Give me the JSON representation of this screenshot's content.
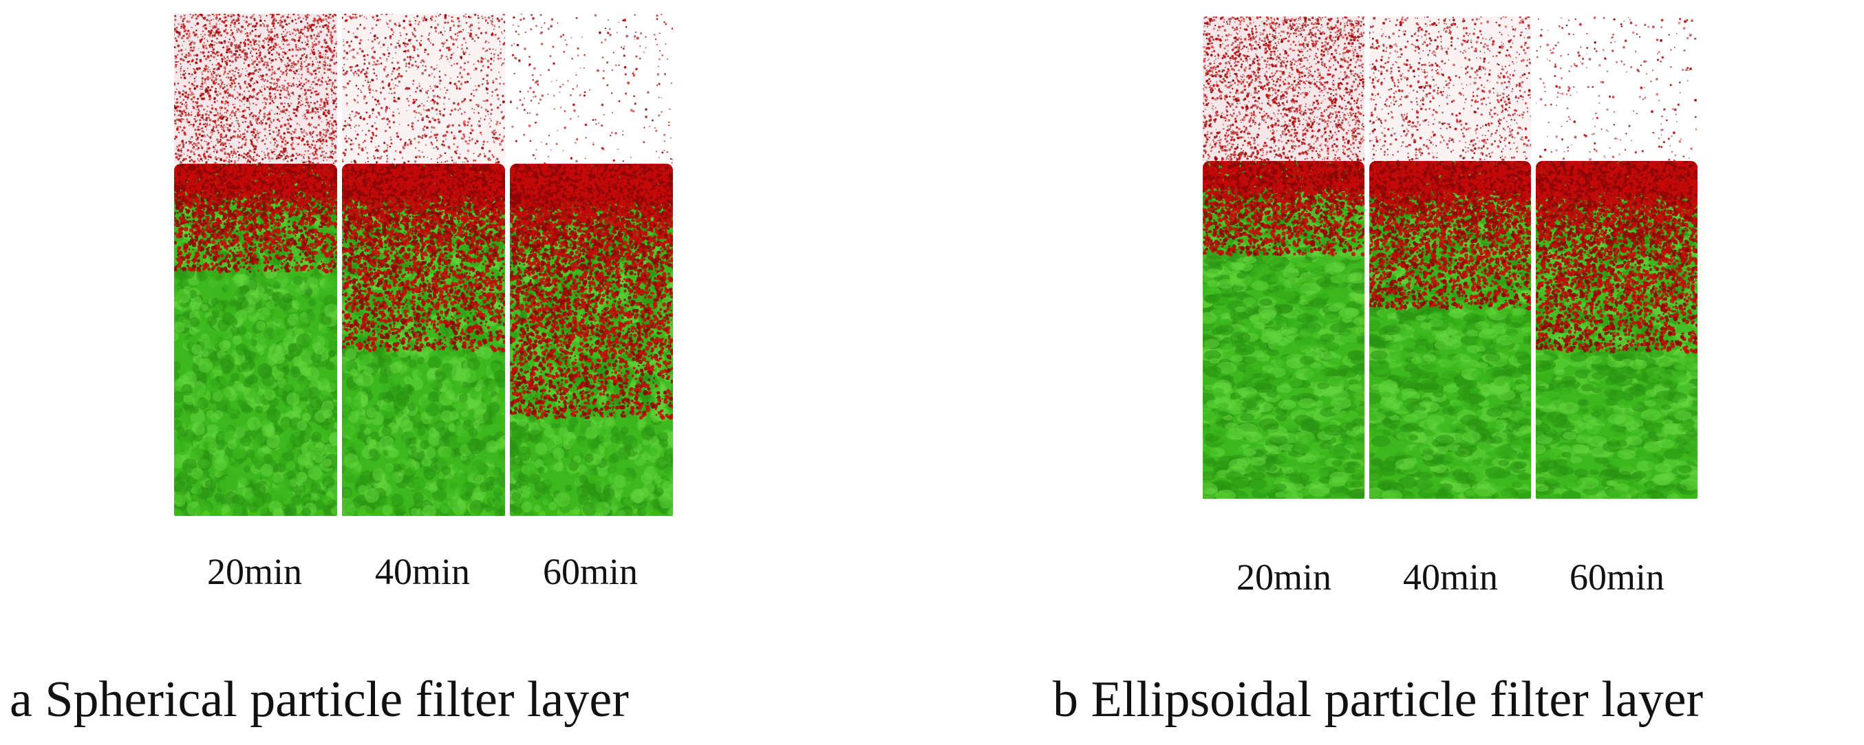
{
  "panels": [
    {
      "id": "a",
      "caption": "a Spherical particle filter layer",
      "shape": "spherical",
      "columns": [
        {
          "time_label": "20min",
          "clogging_level": 0.2,
          "supernatant_density": 0.85
        },
        {
          "time_label": "40min",
          "clogging_level": 0.55,
          "supernatant_density": 0.3
        },
        {
          "time_label": "60min",
          "clogging_level": 0.85,
          "supernatant_density": 0.0
        }
      ]
    },
    {
      "id": "b",
      "caption": "b Ellipsoidal particle filter layer",
      "shape": "ellipsoidal",
      "columns": [
        {
          "time_label": "20min",
          "clogging_level": 0.15,
          "supernatant_density": 0.85
        },
        {
          "time_label": "40min",
          "clogging_level": 0.4,
          "supernatant_density": 0.3
        },
        {
          "time_label": "60min",
          "clogging_level": 0.6,
          "supernatant_density": 0.0
        }
      ]
    }
  ],
  "colors": {
    "filter_particle": "#3db81e",
    "filter_particle_dark": "#2a9412",
    "filter_particle_light": "#62d43c",
    "clog_particle": "#c40a0a",
    "clog_particle_dark": "#8e0606",
    "supernatant_background": "#f4e4e6",
    "background": "#ffffff"
  }
}
